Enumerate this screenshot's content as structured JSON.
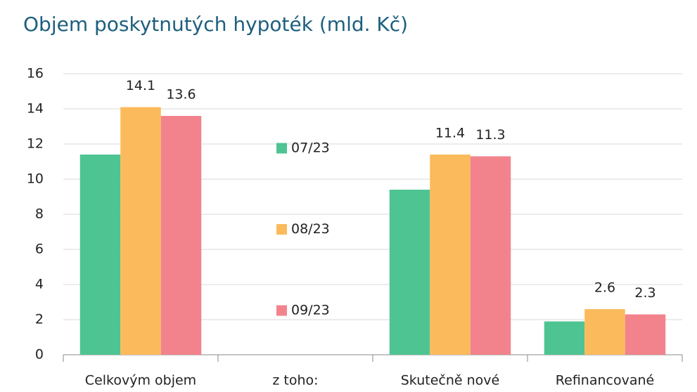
{
  "chart_data": {
    "type": "bar",
    "title": "Objem poskytnutých hypoték (mld. Kč)",
    "categories": [
      "Celkovým objem",
      "z toho:",
      "Skutečně nové",
      "Refinancované"
    ],
    "series": [
      {
        "name": "07/23",
        "color": "#4fc493",
        "values": [
          11.4,
          null,
          9.4,
          1.9
        ],
        "data_labels": false
      },
      {
        "name": "08/23",
        "color": "#fbbb5c",
        "values": [
          14.1,
          null,
          11.4,
          2.6
        ],
        "data_labels": true
      },
      {
        "name": "09/23",
        "color": "#f2838d",
        "values": [
          13.6,
          null,
          11.3,
          2.3
        ],
        "data_labels": true
      }
    ],
    "ylim": [
      0,
      16
    ],
    "yticks": [
      0,
      2,
      4,
      6,
      8,
      10,
      12,
      14,
      16
    ],
    "grid": true,
    "legend": "center"
  }
}
